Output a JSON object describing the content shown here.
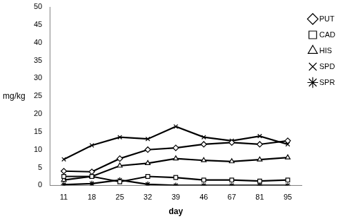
{
  "chart_data": {
    "type": "line",
    "x_label": "day",
    "y_label": "mg/kg",
    "categories": [
      "11",
      "18",
      "25",
      "32",
      "39",
      "46",
      "67",
      "81",
      "95"
    ],
    "series": [
      {
        "name": "PUT",
        "color": "#000000",
        "marker": "diamond",
        "values": [
          4,
          3.8,
          7.5,
          10,
          10.5,
          11.5,
          12,
          11.5,
          12.5
        ]
      },
      {
        "name": "CAD",
        "color": "#000000",
        "marker": "square",
        "values": [
          2.5,
          2.5,
          1,
          2.5,
          2.2,
          1.5,
          1.5,
          1.2,
          1.5
        ]
      },
      {
        "name": "HIS",
        "color": "#000000",
        "marker": "triangle",
        "values": [
          1.5,
          2.5,
          5.5,
          6.2,
          7.5,
          7,
          6.7,
          7.2,
          7.8
        ]
      },
      {
        "name": "SPD",
        "color": "#000000",
        "marker": "x",
        "values": [
          7.3,
          11.2,
          13.5,
          13,
          16.5,
          13.5,
          12.5,
          13.8,
          11.5
        ]
      },
      {
        "name": "SPR",
        "color": "#000000",
        "marker": "star",
        "values": [
          0.2,
          0.5,
          1.5,
          0.3,
          0,
          0,
          0,
          0,
          0
        ]
      }
    ],
    "ylim": [
      0,
      50
    ],
    "yticks": [
      0,
      5,
      10,
      15,
      20,
      25,
      30,
      35,
      40,
      45,
      50
    ],
    "grid": false,
    "legend": "right"
  }
}
